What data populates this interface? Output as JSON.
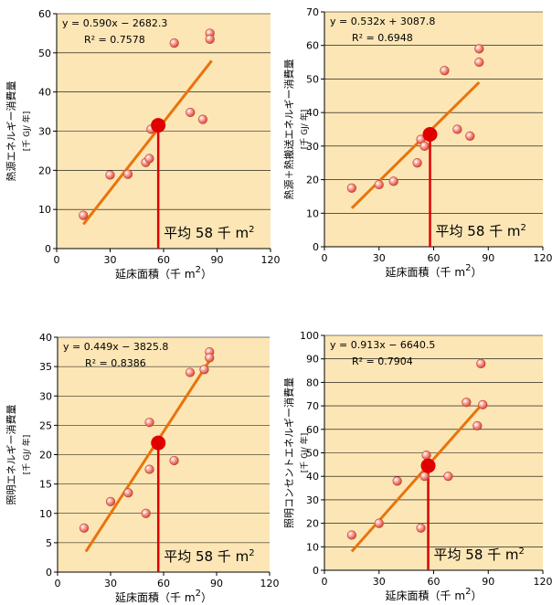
{
  "chart_data": [
    {
      "type": "scatter",
      "xlabel": "延床面積（千 m2）",
      "ylabel": "熱源エネルギー消費量",
      "yunit": "[千 GJ/ 年]",
      "xlim": [
        0,
        120
      ],
      "ylim": [
        0,
        60
      ],
      "xticks": [
        0,
        30,
        60,
        90,
        120
      ],
      "yticks": [
        0,
        10,
        20,
        30,
        40,
        50,
        60
      ],
      "equation": "y = 0.590x − 2682.3",
      "r2": "R² = 0.7578",
      "average_label": "平均 58 千 m2",
      "average_point": {
        "x": 57,
        "y": 31.5
      },
      "trend_line": [
        {
          "x": 15,
          "y": 6.2
        },
        {
          "x": 87,
          "y": 48.0
        }
      ],
      "points": [
        {
          "x": 15,
          "y": 8.5
        },
        {
          "x": 30,
          "y": 18.8
        },
        {
          "x": 40,
          "y": 19.0
        },
        {
          "x": 50,
          "y": 22.0
        },
        {
          "x": 52,
          "y": 23.0
        },
        {
          "x": 53,
          "y": 30.5
        },
        {
          "x": 66,
          "y": 52.5
        },
        {
          "x": 75,
          "y": 34.8
        },
        {
          "x": 82,
          "y": 33.0
        },
        {
          "x": 86,
          "y": 55.0
        },
        {
          "x": 86,
          "y": 53.5
        }
      ],
      "colors": {
        "bg": "#fde6b5",
        "trend": "#e8740c",
        "avg": "#e00000",
        "point": "#f2766a"
      }
    },
    {
      "type": "scatter",
      "xlabel": "延床面積（千 m2）",
      "ylabel": "熱源＋熱搬送エネルギー消費量",
      "yunit": "[千 GJ/ 年]",
      "xlim": [
        0,
        120
      ],
      "ylim": [
        0,
        70
      ],
      "xticks": [
        0,
        30,
        60,
        90,
        120
      ],
      "yticks": [
        0,
        10,
        20,
        30,
        40,
        50,
        60,
        70
      ],
      "equation": "y = 0.532x + 3087.8",
      "r2": "R² = 0.6948",
      "average_label": "平均 58 千 m2",
      "average_point": {
        "x": 58,
        "y": 33.5
      },
      "trend_line": [
        {
          "x": 15,
          "y": 11.5
        },
        {
          "x": 85,
          "y": 49.0
        }
      ],
      "points": [
        {
          "x": 15,
          "y": 17.5
        },
        {
          "x": 30,
          "y": 18.5
        },
        {
          "x": 38,
          "y": 19.5
        },
        {
          "x": 51,
          "y": 25.0
        },
        {
          "x": 53,
          "y": 32.0
        },
        {
          "x": 55,
          "y": 30.0
        },
        {
          "x": 66,
          "y": 52.5
        },
        {
          "x": 73,
          "y": 35.0
        },
        {
          "x": 80,
          "y": 33.0
        },
        {
          "x": 85,
          "y": 59.0
        },
        {
          "x": 85,
          "y": 55.0
        }
      ],
      "colors": {
        "bg": "#fde6b5",
        "trend": "#e8740c",
        "avg": "#e00000",
        "point": "#f2766a"
      }
    },
    {
      "type": "scatter",
      "xlabel": "延床面積（千 m2）",
      "ylabel": "照明エネルギー消費量",
      "yunit": "[千 GJ/ 年]",
      "xlim": [
        0,
        120
      ],
      "ylim": [
        0,
        40
      ],
      "xticks": [
        0,
        30,
        60,
        90,
        120
      ],
      "yticks": [
        0,
        5,
        10,
        15,
        20,
        25,
        30,
        35,
        40
      ],
      "equation": "y = 0.449x − 3825.8",
      "r2": "R² = 0.8386",
      "average_label": "平均 58 千 m2",
      "average_point": {
        "x": 57,
        "y": 22.0
      },
      "trend_line": [
        {
          "x": 16,
          "y": 3.5
        },
        {
          "x": 86,
          "y": 36.0
        }
      ],
      "points": [
        {
          "x": 15,
          "y": 7.5
        },
        {
          "x": 30,
          "y": 12.0
        },
        {
          "x": 40,
          "y": 13.5
        },
        {
          "x": 50,
          "y": 10.0
        },
        {
          "x": 52,
          "y": 17.5
        },
        {
          "x": 52,
          "y": 25.5
        },
        {
          "x": 66,
          "y": 19.0
        },
        {
          "x": 75,
          "y": 34.0
        },
        {
          "x": 83,
          "y": 34.5
        },
        {
          "x": 86,
          "y": 37.5
        },
        {
          "x": 86,
          "y": 36.5
        }
      ],
      "colors": {
        "bg": "#fde6b5",
        "trend": "#e8740c",
        "avg": "#e00000",
        "point": "#f2766a"
      }
    },
    {
      "type": "scatter",
      "xlabel": "延床面積（千 m2）",
      "ylabel": "照明コンセントエネルギー消費量",
      "yunit": "[千 GJ/ 年]",
      "xlim": [
        0,
        120
      ],
      "ylim": [
        0,
        100
      ],
      "xticks": [
        0,
        30,
        60,
        90,
        120
      ],
      "yticks": [
        0,
        10,
        20,
        30,
        40,
        50,
        60,
        70,
        80,
        90,
        100
      ],
      "equation": "y = 0.913x − 6640.5",
      "r2": "R² = 0.7904",
      "average_label": "平均 58 千 m2",
      "average_point": {
        "x": 57,
        "y": 44.5
      },
      "trend_line": [
        {
          "x": 15,
          "y": 8.0
        },
        {
          "x": 87,
          "y": 71.0
        }
      ],
      "points": [
        {
          "x": 15,
          "y": 15.0
        },
        {
          "x": 30,
          "y": 20.0
        },
        {
          "x": 40,
          "y": 38.0
        },
        {
          "x": 53,
          "y": 18.0
        },
        {
          "x": 55,
          "y": 40.0
        },
        {
          "x": 56,
          "y": 49.0
        },
        {
          "x": 68,
          "y": 40.0
        },
        {
          "x": 78,
          "y": 71.5
        },
        {
          "x": 84,
          "y": 61.5
        },
        {
          "x": 86,
          "y": 88.0
        },
        {
          "x": 87,
          "y": 70.5
        }
      ],
      "colors": {
        "bg": "#fde6b5",
        "trend": "#e8740c",
        "avg": "#e00000",
        "point": "#f2766a"
      }
    }
  ]
}
